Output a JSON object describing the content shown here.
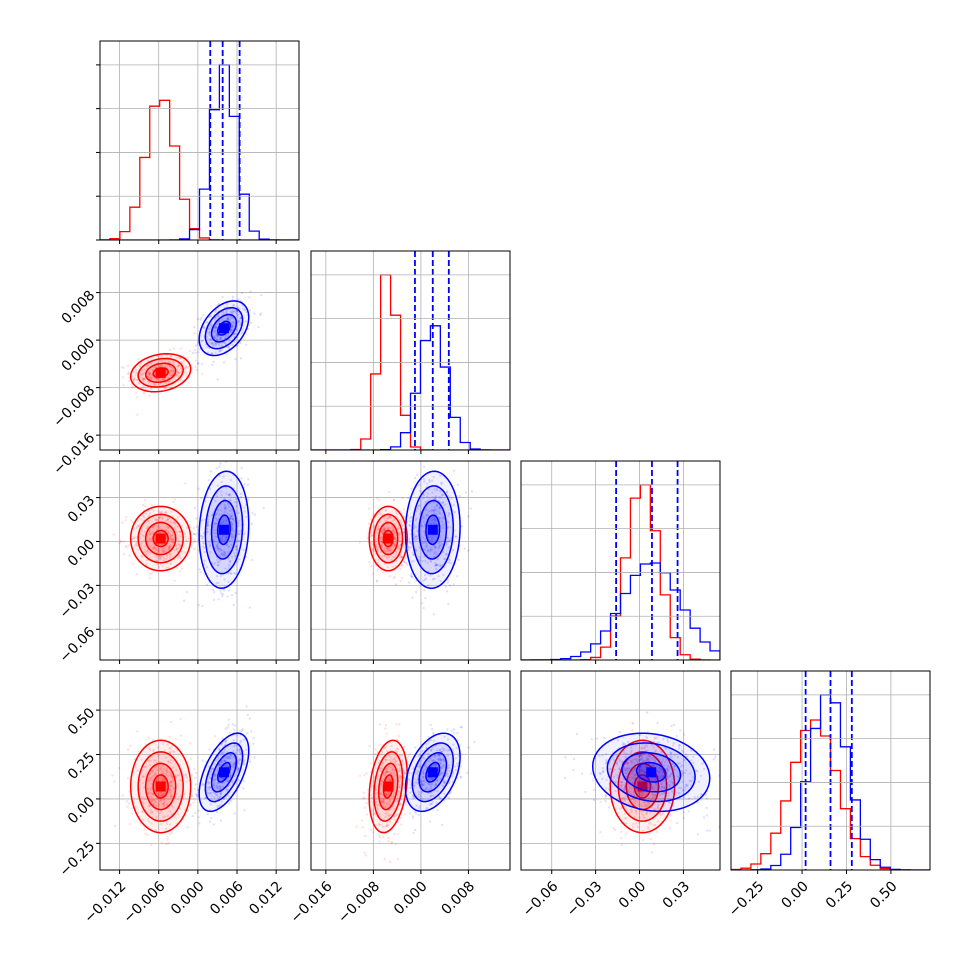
{
  "chart_data": {
    "type": "corner",
    "parameters": 4,
    "series": [
      {
        "name": "",
        "color": "#ff0000",
        "means": [
          -0.0057,
          -0.0055,
          0.002,
          0.07
        ],
        "sds": [
          0.0023,
          0.0016,
          0.011,
          0.13
        ],
        "corr": {
          "1_0": 0.2,
          "2_0": 0.0,
          "2_1": 0.0,
          "3_0": 0.0,
          "3_1": 0.25,
          "3_2": 0.0
        }
      },
      {
        "name": "",
        "color": "#0000ff",
        "means": [
          0.004,
          0.002,
          0.008,
          0.15
        ],
        "sds": [
          0.0019,
          0.0023,
          0.02,
          0.11
        ],
        "corr": {
          "1_0": 0.4,
          "2_0": 0.1,
          "2_1": 0.05,
          "3_0": 0.55,
          "3_1": 0.4,
          "3_2": -0.15
        }
      }
    ],
    "quantile_lines": {
      "color": "#0000ff",
      "values": [
        [
          0.0019,
          0.0038,
          0.0064
        ],
        [
          -0.001,
          0.002,
          0.0047
        ],
        [
          -0.016,
          0.0085,
          0.026
        ],
        [
          0.02,
          0.16,
          0.28
        ]
      ]
    },
    "axes": [
      {
        "range": [
          -0.015,
          0.0155
        ],
        "ticks": [
          -0.012,
          -0.006,
          0.0,
          0.006,
          0.012
        ],
        "tick_labels": [
          "−0.012",
          "−0.006",
          "0.000",
          "0.006",
          "0.012"
        ]
      },
      {
        "range": [
          -0.0185,
          0.015
        ],
        "ticks": [
          -0.016,
          -0.008,
          0.0,
          0.008
        ],
        "tick_labels": [
          "−0.016",
          "−0.008",
          "0.000",
          "0.008"
        ]
      },
      {
        "range": [
          -0.081,
          0.055
        ],
        "ticks": [
          -0.06,
          -0.03,
          0.0,
          0.03
        ],
        "tick_labels": [
          "−0.06",
          "−0.03",
          "0.00",
          "0.03"
        ]
      },
      {
        "range": [
          -0.4,
          0.72
        ],
        "ticks": [
          -0.25,
          0.0,
          0.25,
          0.5
        ],
        "tick_labels": [
          "−0.25",
          "0.00",
          "0.25",
          "0.50"
        ]
      }
    ],
    "grid": true,
    "title": "",
    "xlabel": "",
    "ylabel": ""
  }
}
